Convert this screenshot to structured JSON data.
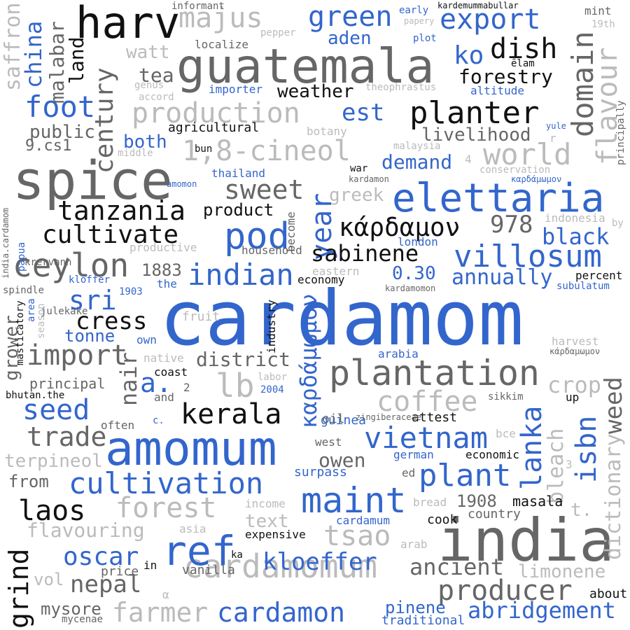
{
  "palette": {
    "blue": "#3366cc",
    "gray": "#666666",
    "black": "#111111",
    "light": "#bbbbbb"
  },
  "words": [
    {
      "id": "cardamom",
      "text": "cardamom",
      "color": "blue"
    },
    {
      "id": "india",
      "text": "india",
      "color": "gray"
    },
    {
      "id": "guatemala",
      "text": "guatemala",
      "color": "gray"
    },
    {
      "id": "spice",
      "text": "spice",
      "color": "gray"
    },
    {
      "id": "amomum",
      "text": "amomum",
      "color": "blue"
    },
    {
      "id": "harv",
      "text": "harv",
      "color": "black"
    },
    {
      "id": "elettaria",
      "text": "elettaria",
      "color": "blue"
    },
    {
      "id": "plantation",
      "text": "plantation",
      "color": "gray"
    },
    {
      "id": "cardamomum",
      "text": "cardamomum",
      "color": "light"
    },
    {
      "id": "cultivation",
      "text": "cultivation",
      "color": "blue"
    },
    {
      "id": "maint",
      "text": "maint",
      "color": "blue"
    },
    {
      "id": "production",
      "text": "production",
      "color": "light"
    },
    {
      "id": "1-8-cineol",
      "text": "1,8-cineol",
      "color": "light"
    },
    {
      "id": "domain",
      "text": "domain",
      "color": "gray"
    },
    {
      "id": "ref",
      "text": "ref",
      "color": "blue"
    },
    {
      "id": "planter",
      "text": "planter",
      "color": "black"
    },
    {
      "id": "pod",
      "text": "pod",
      "color": "blue"
    },
    {
      "id": "villosum",
      "text": "villosum",
      "color": "blue"
    },
    {
      "id": "kerala",
      "text": "kerala",
      "color": "black"
    },
    {
      "id": "vietnam",
      "text": "vietnam",
      "color": "blue"
    },
    {
      "id": "plant",
      "text": "plant",
      "color": "blue"
    },
    {
      "id": "ceylon",
      "text": "ceylon",
      "color": "gray"
    },
    {
      "id": "tanzania",
      "text": "tanzania",
      "color": "black"
    },
    {
      "id": "century",
      "text": "century",
      "color": "gray"
    },
    {
      "id": "majus",
      "text": "majus",
      "color": "light"
    },
    {
      "id": "green",
      "text": "green",
      "color": "blue"
    },
    {
      "id": "export",
      "text": "export",
      "color": "blue"
    },
    {
      "id": "indian",
      "text": "indian",
      "color": "blue"
    },
    {
      "id": "import",
      "text": "import",
      "color": "gray"
    },
    {
      "id": "cultivate",
      "text": "cultivate",
      "color": "black"
    },
    {
      "id": "foot",
      "text": "foot",
      "color": "blue"
    },
    {
      "id": "world",
      "text": "world",
      "color": "light"
    },
    {
      "id": "forest",
      "text": "forest",
      "color": "light"
    },
    {
      "id": "farmer",
      "text": "farmer",
      "color": "light"
    },
    {
      "id": "cardamon",
      "text": "cardamon",
      "color": "blue"
    },
    {
      "id": "producer",
      "text": "producer",
      "color": "gray"
    },
    {
      "id": "kloeffer",
      "text": "kloeffer",
      "color": "blue"
    },
    {
      "id": "nepal",
      "text": "nepal",
      "color": "gray"
    },
    {
      "id": "oscar",
      "text": "oscar",
      "color": "blue"
    },
    {
      "id": "tsao",
      "text": "tsao",
      "color": "light"
    },
    {
      "id": "lb",
      "text": "lb",
      "color": "light"
    },
    {
      "id": "seed",
      "text": "seed",
      "color": "blue"
    },
    {
      "id": "trade",
      "text": "trade",
      "color": "gray"
    },
    {
      "id": "laos",
      "text": "laos",
      "color": "black"
    },
    {
      "id": "grind",
      "text": "grind",
      "color": "black"
    },
    {
      "id": "coffee",
      "text": "coffee",
      "color": "light"
    },
    {
      "id": "lanka",
      "text": "lanka",
      "color": "blue"
    },
    {
      "id": "isbn",
      "text": "isbn",
      "color": "blue"
    },
    {
      "id": "year",
      "text": "year",
      "color": "blue"
    },
    {
      "id": "sweet",
      "text": "sweet",
      "color": "gray"
    },
    {
      "id": "kardamon-greek",
      "text": "κάρδαμον",
      "color": "black"
    },
    {
      "id": "kardamomon-greek-v",
      "text": "καρδάμωμον",
      "color": "blue"
    },
    {
      "id": "sabinene",
      "text": "sabinene",
      "color": "black"
    },
    {
      "id": "dish",
      "text": "dish",
      "color": "black"
    },
    {
      "id": "flavour",
      "text": "flavour",
      "color": "light"
    },
    {
      "id": "ko",
      "text": "ko",
      "color": "blue"
    },
    {
      "id": "weed",
      "text": "weed",
      "color": "gray"
    },
    {
      "id": "dictionary",
      "text": "dictionary",
      "color": "light"
    },
    {
      "id": "abridgement",
      "text": "abridgement",
      "color": "blue"
    },
    {
      "id": "ancient",
      "text": "ancient",
      "color": "gray"
    },
    {
      "id": "cress",
      "text": "cress",
      "color": "black"
    },
    {
      "id": "sri",
      "text": "sri",
      "color": "blue"
    },
    {
      "id": "a",
      "text": "a.",
      "color": "blue"
    },
    {
      "id": "nair",
      "text": "nair",
      "color": "gray"
    },
    {
      "id": "district",
      "text": "district",
      "color": "gray"
    },
    {
      "id": "owen",
      "text": "owen",
      "color": "gray"
    },
    {
      "id": "crop",
      "text": "crop",
      "color": "light"
    },
    {
      "id": "bleach",
      "text": "bleach",
      "color": "light"
    },
    {
      "id": "978",
      "text": "978",
      "color": "gray"
    },
    {
      "id": "black",
      "text": "black",
      "color": "blue"
    },
    {
      "id": "annually",
      "text": "annually",
      "color": "blue"
    },
    {
      "id": "demand",
      "text": "demand",
      "color": "blue"
    },
    {
      "id": "est",
      "text": "est",
      "color": "blue"
    },
    {
      "id": "forestry",
      "text": "forestry",
      "color": "black"
    },
    {
      "id": "aden",
      "text": "aden",
      "color": "blue"
    },
    {
      "id": "weather",
      "text": "weather",
      "color": "black"
    },
    {
      "id": "livelihood",
      "text": "livelihood",
      "color": "gray"
    },
    {
      "id": "china",
      "text": "china",
      "color": "blue"
    },
    {
      "id": "malabar",
      "text": "malabar",
      "color": "gray"
    },
    {
      "id": "saffron",
      "text": "saffron",
      "color": "light"
    },
    {
      "id": "land",
      "text": "land",
      "color": "black"
    },
    {
      "id": "watt",
      "text": "watt",
      "color": "light"
    },
    {
      "id": "tea",
      "text": "tea",
      "color": "gray"
    },
    {
      "id": "public",
      "text": "public",
      "color": "gray"
    },
    {
      "id": "9cs1",
      "text": "9.cs1",
      "color": "gray"
    },
    {
      "id": "both",
      "text": "both",
      "color": "blue"
    },
    {
      "id": "agricultural",
      "text": "agricultural",
      "color": "black"
    },
    {
      "id": "product",
      "text": "product",
      "color": "black"
    },
    {
      "id": "greek",
      "text": "greek",
      "color": "light"
    },
    {
      "id": "0-30",
      "text": "0.30",
      "color": "blue"
    },
    {
      "id": "1883",
      "text": "1883",
      "color": "gray"
    },
    {
      "id": "tonne",
      "text": "tonne",
      "color": "blue"
    },
    {
      "id": "principal",
      "text": "principal",
      "color": "gray"
    },
    {
      "id": "terpineol",
      "text": "terpineol",
      "color": "light"
    },
    {
      "id": "from",
      "text": "from",
      "color": "gray"
    },
    {
      "id": "flavouring",
      "text": "flavouring",
      "color": "light"
    },
    {
      "id": "text",
      "text": "text",
      "color": "light"
    },
    {
      "id": "1908",
      "text": "1908",
      "color": "gray"
    },
    {
      "id": "masala",
      "text": "masala",
      "color": "black"
    },
    {
      "id": "cook",
      "text": "cook",
      "color": "black"
    },
    {
      "id": "limonene",
      "text": "limonene",
      "color": "light"
    },
    {
      "id": "pinene",
      "text": "pinene",
      "color": "blue"
    },
    {
      "id": "traditional",
      "text": "traditional",
      "color": "blue"
    },
    {
      "id": "vol",
      "text": "vol",
      "color": "light"
    },
    {
      "id": "mysore",
      "text": "mysore",
      "color": "gray"
    },
    {
      "id": "vanilla",
      "text": "vanilla",
      "color": "gray"
    },
    {
      "id": "price",
      "text": "price",
      "color": "gray"
    },
    {
      "id": "about",
      "text": "about",
      "color": "black"
    },
    {
      "id": "t",
      "text": "t.",
      "color": "light"
    },
    {
      "id": "country",
      "text": "country",
      "color": "gray"
    },
    {
      "id": "grower",
      "text": "grower",
      "color": "gray"
    },
    {
      "id": "surpass",
      "text": "surpass",
      "color": "blue"
    },
    {
      "id": "german",
      "text": "german",
      "color": "blue"
    },
    {
      "id": "economic",
      "text": "economic",
      "color": "black"
    },
    {
      "id": "guinea",
      "text": "guinea",
      "color": "blue"
    },
    {
      "id": "attest",
      "text": "attest",
      "color": "black"
    },
    {
      "id": "oil",
      "text": "oil",
      "color": "gray"
    },
    {
      "id": "west",
      "text": "west",
      "color": "gray"
    },
    {
      "id": "coast",
      "text": "coast",
      "color": "black"
    },
    {
      "id": "fruit",
      "text": "fruit",
      "color": "light"
    },
    {
      "id": "native",
      "text": "native",
      "color": "light"
    },
    {
      "id": "own",
      "text": "own",
      "color": "blue"
    },
    {
      "id": "industry",
      "text": "industry",
      "color": "black"
    },
    {
      "id": "economy",
      "text": "economy",
      "color": "black"
    },
    {
      "id": "london",
      "text": "london",
      "color": "blue"
    },
    {
      "id": "eastern",
      "text": "eastern",
      "color": "light"
    },
    {
      "id": "household",
      "text": "household",
      "color": "gray"
    },
    {
      "id": "become",
      "text": "become",
      "color": "gray"
    },
    {
      "id": "productive",
      "text": "productive",
      "color": "light"
    },
    {
      "id": "papua",
      "text": "papua",
      "color": "blue"
    },
    {
      "id": "krervanh",
      "text": "krervanh",
      "color": "gray"
    },
    {
      "id": "india-cardamom",
      "text": "india.cardamom",
      "color": "gray"
    },
    {
      "id": "spindle",
      "text": "spindle",
      "color": "gray"
    },
    {
      "id": "kloffer",
      "text": "klöffer",
      "color": "blue"
    },
    {
      "id": "1903",
      "text": "1903",
      "color": "blue"
    },
    {
      "id": "the",
      "text": "the",
      "color": "blue"
    },
    {
      "id": "masticatory",
      "text": "masticatory",
      "color": "black"
    },
    {
      "id": "area",
      "text": "area",
      "color": "blue"
    },
    {
      "id": "season",
      "text": "season",
      "color": "light"
    },
    {
      "id": "julekake",
      "text": "julekake",
      "color": "gray"
    },
    {
      "id": "bhutan-the",
      "text": "bhutan.the",
      "color": "black"
    },
    {
      "id": "2",
      "text": "2",
      "color": "gray"
    },
    {
      "id": "and",
      "text": "and",
      "color": "gray"
    },
    {
      "id": "c",
      "text": "c.",
      "color": "blue"
    },
    {
      "id": "often",
      "text": "often",
      "color": "gray"
    },
    {
      "id": "in",
      "text": "in",
      "color": "black"
    },
    {
      "id": "ka",
      "text": "ka",
      "color": "black"
    },
    {
      "id": "alpha",
      "text": "α",
      "color": "light"
    },
    {
      "id": "mycenae",
      "text": "mycenae",
      "color": "gray"
    },
    {
      "id": "asia",
      "text": "asia",
      "color": "light"
    },
    {
      "id": "expensive",
      "text": "expensive",
      "color": "black"
    },
    {
      "id": "income",
      "text": "income",
      "color": "light"
    },
    {
      "id": "cardamum",
      "text": "cardamum",
      "color": "blue"
    },
    {
      "id": "arab",
      "text": "arab",
      "color": "light"
    },
    {
      "id": "bread",
      "text": "bread",
      "color": "light"
    },
    {
      "id": "ed",
      "text": "ed",
      "color": "gray"
    },
    {
      "id": "3",
      "text": "3",
      "color": "light"
    },
    {
      "id": "bce",
      "text": "bce",
      "color": "light"
    },
    {
      "id": "up",
      "text": "up",
      "color": "black"
    },
    {
      "id": "sikkim",
      "text": "sikkim",
      "color": "gray"
    },
    {
      "id": "zingiberaceae",
      "text": "zingiberaceae",
      "color": "gray"
    },
    {
      "id": "labor",
      "text": "labor",
      "color": "light"
    },
    {
      "id": "2004",
      "text": "2004",
      "color": "blue"
    },
    {
      "id": "arabia",
      "text": "arabia",
      "color": "blue"
    },
    {
      "id": "harvest",
      "text": "harvest",
      "color": "light"
    },
    {
      "id": "kardamomon-greek",
      "text": "κάρδαμωμον",
      "color": "gray"
    },
    {
      "id": "kardamomon",
      "text": "kardamomon",
      "color": "gray"
    },
    {
      "id": "subulatum",
      "text": "subulatum",
      "color": "blue"
    },
    {
      "id": "percent",
      "text": "percent",
      "color": "black"
    },
    {
      "id": "indonesia",
      "text": "indonesia",
      "color": "light"
    },
    {
      "id": "by",
      "text": "by",
      "color": "light"
    },
    {
      "id": "kardamon",
      "text": "kardamon",
      "color": "gray"
    },
    {
      "id": "war",
      "text": "war",
      "color": "black"
    },
    {
      "id": "thailand",
      "text": "thailand",
      "color": "blue"
    },
    {
      "id": "amomon",
      "text": "amomon",
      "color": "blue"
    },
    {
      "id": "kardamomon-greek-small",
      "text": "καρδάμωμον",
      "color": "blue"
    },
    {
      "id": "conservation",
      "text": "conservation",
      "color": "light"
    },
    {
      "id": "yule",
      "text": "yule",
      "color": "blue"
    },
    {
      "id": "r",
      "text": "r",
      "color": "light"
    },
    {
      "id": "principally",
      "text": "principally",
      "color": "gray"
    },
    {
      "id": "4",
      "text": "4",
      "color": "light"
    },
    {
      "id": "malaysia",
      "text": "malaysia",
      "color": "light"
    },
    {
      "id": "theophrastus",
      "text": "theophrastus",
      "color": "light"
    },
    {
      "id": "elam",
      "text": "ēlam",
      "color": "black"
    },
    {
      "id": "altitude",
      "text": "altitude",
      "color": "blue"
    },
    {
      "id": "botany",
      "text": "botany",
      "color": "light"
    },
    {
      "id": "importer",
      "text": "importer",
      "color": "blue"
    },
    {
      "id": "genus",
      "text": "genus",
      "color": "light"
    },
    {
      "id": "accord",
      "text": "accord",
      "color": "light"
    },
    {
      "id": "middle",
      "text": "middle",
      "color": "light"
    },
    {
      "id": "bun",
      "text": "bun",
      "color": "black"
    },
    {
      "id": "localize",
      "text": "localize",
      "color": "gray"
    },
    {
      "id": "pepper",
      "text": "pepper",
      "color": "light"
    },
    {
      "id": "informant",
      "text": "informant",
      "color": "gray"
    },
    {
      "id": "early",
      "text": "early",
      "color": "blue"
    },
    {
      "id": "papery",
      "text": "papery",
      "color": "light"
    },
    {
      "id": "plot",
      "text": "plot",
      "color": "blue"
    },
    {
      "id": "kardemummabullar",
      "text": "kardemummabullar",
      "color": "black"
    },
    {
      "id": "mint",
      "text": "mint",
      "color": "gray"
    },
    {
      "id": "19th",
      "text": "19th",
      "color": "light"
    }
  ]
}
